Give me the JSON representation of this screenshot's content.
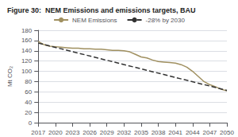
{
  "chart_data": {
    "type": "line",
    "title": "Figure 30:  NEM Emissions and emissions targets, BAU",
    "ylabel": "Mt CO₂",
    "xlim": [
      2017,
      2050
    ],
    "xticks": [
      2017,
      2020,
      2023,
      2026,
      2029,
      2032,
      2035,
      2038,
      2041,
      2044,
      2047,
      2050
    ],
    "ylim": [
      0,
      180
    ],
    "yticks": [
      0,
      20,
      40,
      60,
      80,
      100,
      120,
      140,
      160,
      180
    ],
    "grid": true,
    "legend": "top",
    "series": [
      {
        "name": "NEM Emissions",
        "color": "#a09060",
        "line_style": "solid",
        "x": [
          2017,
          2018,
          2019,
          2020,
          2021,
          2022,
          2023,
          2024,
          2025,
          2026,
          2027,
          2028,
          2029,
          2030,
          2031,
          2032,
          2033,
          2034,
          2035,
          2036,
          2037,
          2038,
          2039,
          2040,
          2041,
          2042,
          2043,
          2044,
          2045,
          2046,
          2047,
          2048,
          2049,
          2050
        ],
        "values": [
          158,
          152,
          149,
          148,
          147,
          146,
          145,
          145,
          144,
          144,
          143,
          143,
          142,
          141,
          141,
          140,
          138,
          133,
          128,
          126,
          122,
          119,
          118,
          117,
          116,
          113,
          108,
          100,
          90,
          80,
          74,
          70,
          65,
          62
        ]
      },
      {
        "name": "-28% by 2030",
        "color": "#333333",
        "line_style": "dashed",
        "x": [
          2017,
          2050
        ],
        "values": [
          155,
          63
        ]
      }
    ]
  }
}
